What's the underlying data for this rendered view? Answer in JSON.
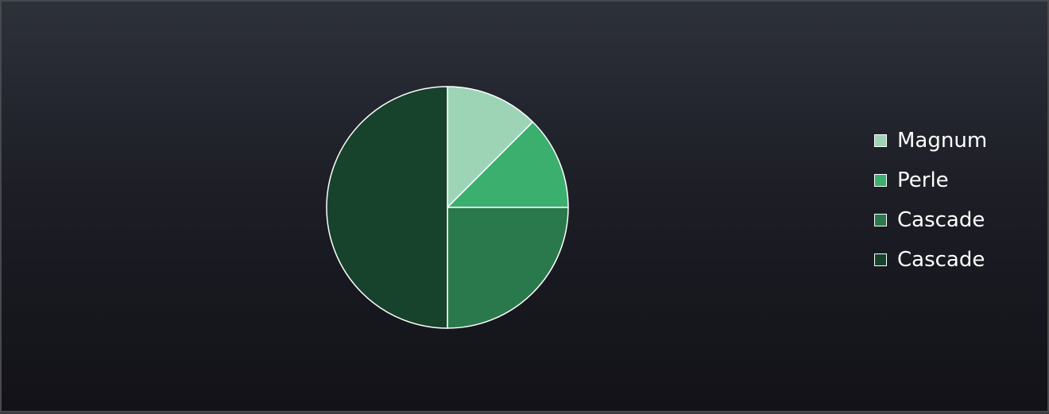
{
  "chart_data": {
    "type": "pie",
    "title": "",
    "legend_position": "right",
    "slices": [
      {
        "label": "Magnum",
        "value": 12.5,
        "color": "#9dd4b6"
      },
      {
        "label": "Perle",
        "value": 12.5,
        "color": "#3aaf6e"
      },
      {
        "label": "Cascade",
        "value": 25,
        "color": "#29794c"
      },
      {
        "label": "Cascade",
        "value": 50,
        "color": "#17422b"
      }
    ],
    "slice_border_color": "#ffffff",
    "background_colors": [
      "#2d313a",
      "#121218"
    ]
  }
}
